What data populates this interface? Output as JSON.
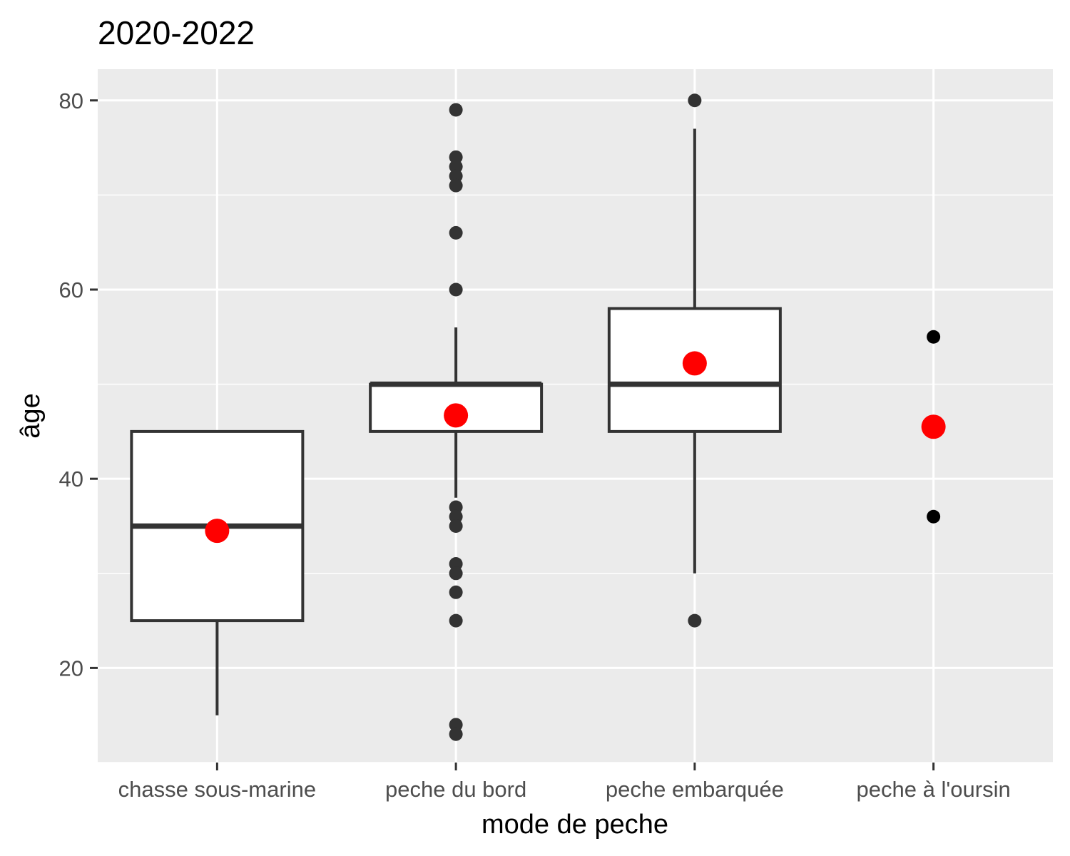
{
  "chart_data": {
    "type": "boxplot",
    "title": "2020-2022",
    "xlabel": "mode de peche",
    "ylabel": "âge",
    "ylim": [
      10,
      83.3
    ],
    "yticks": [
      20,
      40,
      60,
      80
    ],
    "grid": true,
    "categories": [
      "chasse sous-marine",
      "peche du bord",
      "peche embarquée",
      "peche à l'oursin"
    ],
    "boxes": [
      {
        "category": "chasse sous-marine",
        "whisker_low": 15,
        "q1": 25,
        "median": 35,
        "q3": 45,
        "whisker_high": 45,
        "mean": 34.5,
        "outliers": []
      },
      {
        "category": "peche du bord",
        "whisker_low": 38,
        "q1": 45,
        "median": 50,
        "q3": 50,
        "whisker_high": 56,
        "mean": 46.7,
        "outliers": [
          79,
          74,
          73,
          72,
          71,
          66,
          60,
          37,
          36,
          35,
          31,
          30,
          28,
          25,
          14,
          13
        ]
      },
      {
        "category": "peche embarquée",
        "whisker_low": 30,
        "q1": 45,
        "median": 50,
        "q3": 58,
        "whisker_high": 77,
        "mean": 52.2,
        "outliers": [
          80,
          25
        ]
      },
      {
        "category": "peche à l'oursin",
        "whisker_low": null,
        "q1": null,
        "median": null,
        "q3": null,
        "whisker_high": null,
        "mean": 45.5,
        "outliers": [
          55,
          36
        ]
      }
    ],
    "colors": {
      "panel": "#ebebeb",
      "grid": "#ffffff",
      "box_fill": "#ffffff",
      "box_line": "#333333",
      "outlier": "#333333",
      "mean": "#ff0000",
      "tick_text": "#4d4d4d"
    }
  }
}
